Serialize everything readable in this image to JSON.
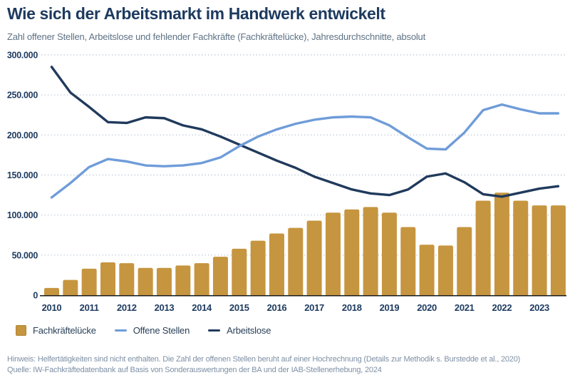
{
  "header": {
    "title": "Wie sich der Arbeitsmarkt im Handwerk entwickelt",
    "subtitle": "Zahl offener Stellen, Arbeitslose und fehlender Fachkräfte (Fachkräftelücke), Jahresdurchschnitte, absolut"
  },
  "chart_data": {
    "type": "bar+line",
    "x_resolution": "half-yearly points, year tick under first half-year bar",
    "years": [
      "2010",
      "2011",
      "2012",
      "2013",
      "2014",
      "2015",
      "2016",
      "2017",
      "2018",
      "2019",
      "2020",
      "2021",
      "2022",
      "2023"
    ],
    "y_axis": {
      "min": 0,
      "max": 300000,
      "tick_step": 50000,
      "tick_labels": [
        "0",
        "50.000",
        "100.000",
        "150.000",
        "200.000",
        "250.000",
        "300.000"
      ]
    },
    "grid": "horizontal-dotted",
    "legend_position": "bottom-left",
    "series": [
      {
        "name": "Fachkräftelücke",
        "type": "bar",
        "color": "#c6953f",
        "values": [
          9000,
          19000,
          33000,
          41000,
          40000,
          34000,
          34000,
          37000,
          40000,
          48000,
          58000,
          68000,
          77000,
          84000,
          93000,
          103000,
          107000,
          110000,
          103000,
          85000,
          63000,
          62000,
          85000,
          118000,
          128000,
          118000,
          112000,
          112000
        ]
      },
      {
        "name": "Offene Stellen",
        "type": "line",
        "color": "#6f9cd9",
        "values": [
          122000,
          140000,
          160000,
          170000,
          167000,
          162000,
          161000,
          162000,
          165000,
          172000,
          186000,
          198000,
          207000,
          214000,
          219000,
          222000,
          223000,
          222000,
          212000,
          197000,
          183000,
          182000,
          203000,
          231000,
          238000,
          232000,
          227000,
          227000
        ]
      },
      {
        "name": "Arbeitslose",
        "type": "line",
        "color": "#203a5c",
        "values": [
          285000,
          253000,
          235000,
          216000,
          215000,
          222000,
          221000,
          212000,
          207000,
          198000,
          188000,
          178000,
          168000,
          159000,
          148000,
          140000,
          132000,
          127000,
          125000,
          132000,
          148000,
          152000,
          141000,
          126000,
          123000,
          128000,
          133000,
          136000
        ]
      }
    ]
  },
  "legend": {
    "items": [
      {
        "label": "Fachkräftelücke",
        "swatch": "square",
        "color": "#c6953f"
      },
      {
        "label": "Offene Stellen",
        "swatch": "line",
        "color": "#6f9cd9"
      },
      {
        "label": "Arbeitslose",
        "swatch": "line",
        "color": "#203a5c"
      }
    ]
  },
  "footer": {
    "note": "Hinweis: Helfertätigkeiten sind nicht enthalten. Die Zahl der offenen Stellen beruht auf einer Hochrechnung (Details zur Methodik s. Burstedde et al., 2020)",
    "source": "Quelle: IW-Fachkräftedatenbank auf Basis von Sonderauswertungen der BA und der IAB-Stellenerhebung, 2024"
  },
  "colors": {
    "title": "#1d3a5f",
    "subtitle": "#5e7285",
    "axis_label": "#1d3a5f",
    "gridline": "#b0c0d2",
    "baseline": "#1a1a1a",
    "footer_text": "#7e90a5",
    "background": "#ffffff"
  }
}
